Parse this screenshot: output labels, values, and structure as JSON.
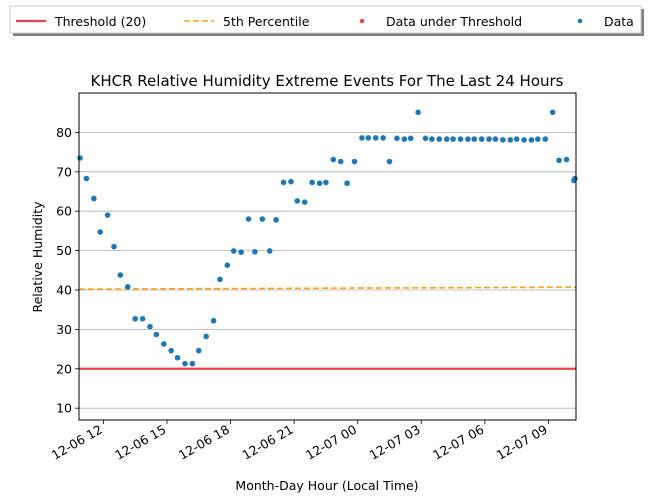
{
  "chart_data": {
    "type": "scatter",
    "title": "KHCR Relative Humidity Extreme Events For The Last 24 Hours",
    "xlabel": "Month-Day Hour (Local Time)",
    "ylabel": "Relative Humidity",
    "ylim": [
      7,
      90
    ],
    "xlim_hours": [
      10.85,
      34.3
    ],
    "yticks": [
      10,
      20,
      30,
      40,
      50,
      60,
      70,
      80
    ],
    "xticks": [
      {
        "h": 12,
        "label": "12-06 12"
      },
      {
        "h": 15,
        "label": "12-06 15"
      },
      {
        "h": 18,
        "label": "12-06 18"
      },
      {
        "h": 21,
        "label": "12-06 21"
      },
      {
        "h": 24,
        "label": "12-07 00"
      },
      {
        "h": 27,
        "label": "12-07 03"
      },
      {
        "h": 30,
        "label": "12-07 06"
      },
      {
        "h": 33,
        "label": "12-07 09"
      }
    ],
    "grid": "horizontal",
    "legend": {
      "placement": "top",
      "entries": [
        {
          "label": "Threshold (20)",
          "type": "line",
          "color": "#e8474a"
        },
        {
          "label": "5th Percentile",
          "type": "dashed-line",
          "color": "#ff9f1c"
        },
        {
          "label": "Data under Threshold",
          "type": "marker",
          "color": "#d9534f"
        },
        {
          "label": "Data",
          "type": "marker",
          "color": "#1f77b4"
        }
      ]
    },
    "threshold": {
      "value": 20,
      "color": "#e8474a"
    },
    "percentile": {
      "start": 40.2,
      "end": 40.7,
      "color": "#ff9f1c"
    },
    "series": [
      {
        "name": "Data",
        "color": "#1f77b4",
        "points": [
          [
            10.85,
            73.5
          ],
          [
            11.2,
            68.3
          ],
          [
            11.55,
            63.2
          ],
          [
            11.85,
            54.7
          ],
          [
            12.2,
            59.0
          ],
          [
            12.5,
            51.0
          ],
          [
            12.8,
            43.8
          ],
          [
            13.15,
            40.8
          ],
          [
            13.5,
            32.7
          ],
          [
            13.85,
            32.7
          ],
          [
            14.2,
            30.7
          ],
          [
            14.5,
            28.7
          ],
          [
            14.85,
            26.3
          ],
          [
            15.2,
            24.6
          ],
          [
            15.5,
            22.8
          ],
          [
            15.85,
            21.3
          ],
          [
            16.2,
            21.3
          ],
          [
            16.5,
            24.6
          ],
          [
            16.85,
            28.2
          ],
          [
            17.2,
            32.2
          ],
          [
            17.5,
            42.7
          ],
          [
            17.85,
            46.3
          ],
          [
            18.15,
            49.9
          ],
          [
            18.5,
            49.6
          ],
          [
            18.85,
            58.0
          ],
          [
            19.15,
            49.7
          ],
          [
            19.5,
            58.0
          ],
          [
            19.85,
            49.9
          ],
          [
            20.15,
            57.8
          ],
          [
            20.5,
            67.3
          ],
          [
            20.85,
            67.5
          ],
          [
            21.15,
            62.6
          ],
          [
            21.5,
            62.3
          ],
          [
            21.85,
            67.3
          ],
          [
            22.2,
            67.1
          ],
          [
            22.5,
            67.3
          ],
          [
            22.85,
            73.1
          ],
          [
            23.2,
            72.6
          ],
          [
            23.5,
            67.1
          ],
          [
            23.85,
            72.6
          ],
          [
            24.2,
            78.6
          ],
          [
            24.5,
            78.6
          ],
          [
            24.85,
            78.6
          ],
          [
            25.2,
            78.6
          ],
          [
            25.5,
            72.6
          ],
          [
            25.85,
            78.5
          ],
          [
            26.2,
            78.3
          ],
          [
            26.5,
            78.5
          ],
          [
            26.85,
            85.1
          ],
          [
            27.2,
            78.5
          ],
          [
            27.5,
            78.3
          ],
          [
            27.85,
            78.3
          ],
          [
            28.2,
            78.3
          ],
          [
            28.5,
            78.3
          ],
          [
            28.85,
            78.3
          ],
          [
            29.2,
            78.3
          ],
          [
            29.5,
            78.3
          ],
          [
            29.85,
            78.3
          ],
          [
            30.2,
            78.3
          ],
          [
            30.5,
            78.3
          ],
          [
            30.85,
            78.1
          ],
          [
            31.2,
            78.1
          ],
          [
            31.5,
            78.3
          ],
          [
            31.85,
            78.1
          ],
          [
            32.2,
            78.1
          ],
          [
            32.5,
            78.3
          ],
          [
            32.85,
            78.3
          ],
          [
            33.2,
            85.1
          ],
          [
            33.5,
            72.9
          ],
          [
            33.85,
            73.1
          ],
          [
            34.2,
            67.8
          ],
          [
            34.55,
            68.3
          ]
        ]
      }
    ]
  }
}
